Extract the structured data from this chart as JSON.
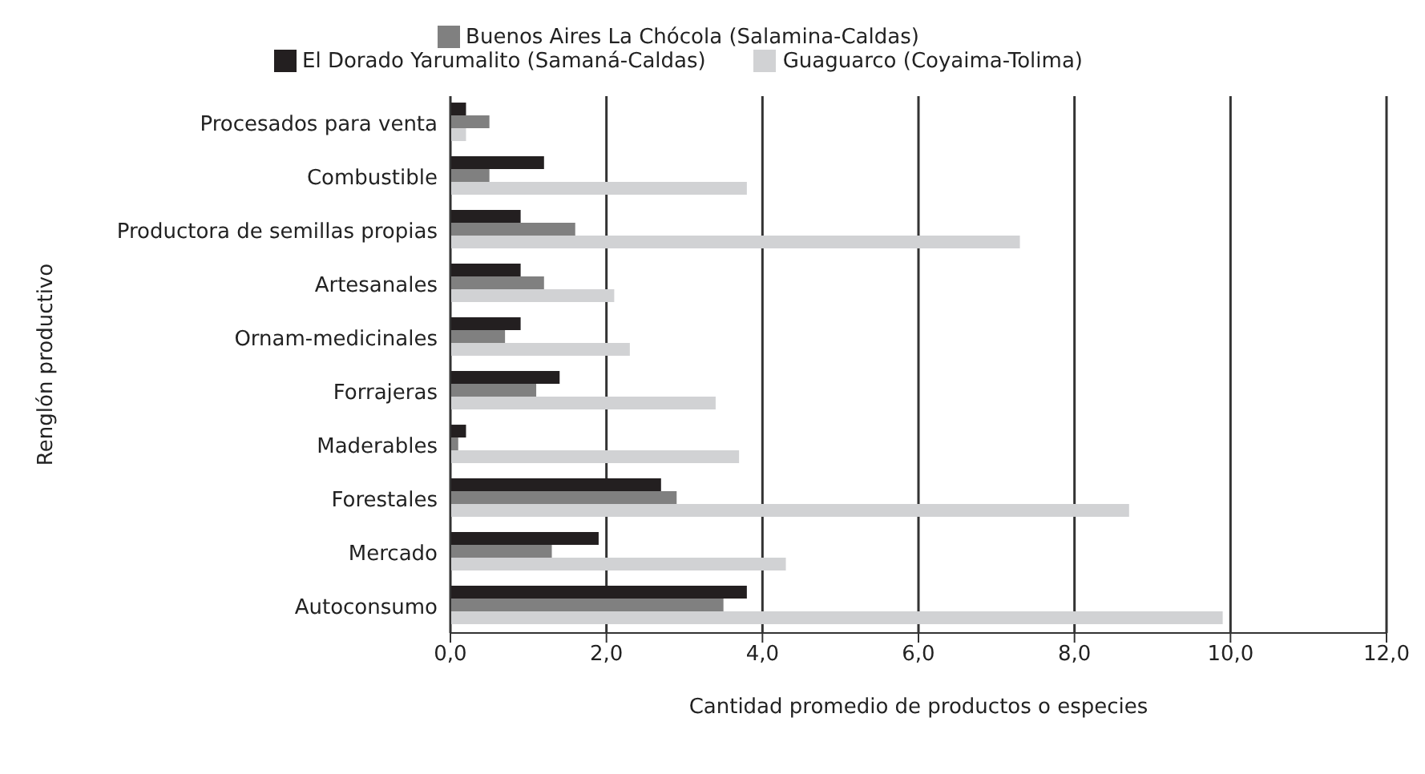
{
  "chart_data": {
    "type": "bar",
    "orientation": "horizontal",
    "xlabel": "Cantidad promedio de productos o especies",
    "ylabel": "Renglón productivo",
    "categories": [
      "Procesados para venta",
      "Combustible",
      "Productora de semillas propias",
      "Artesanales",
      "Ornam-medicinales",
      "Forrajeras",
      "Maderables",
      "Forestales",
      "Mercado",
      "Autoconsumo"
    ],
    "series": [
      {
        "name": "El Dorado Yarumalito (Samaná-Caldas)",
        "color": "#231f20",
        "values": [
          0.2,
          1.2,
          0.9,
          0.9,
          0.9,
          1.4,
          0.2,
          2.7,
          1.9,
          3.8
        ]
      },
      {
        "name": "Buenos Aires La Chócola (Salamina-Caldas)",
        "color": "#808080",
        "values": [
          0.5,
          0.5,
          1.6,
          1.2,
          0.7,
          1.1,
          0.1,
          2.9,
          1.3,
          3.5
        ]
      },
      {
        "name": "Guaguarco (Coyaima-Tolima)",
        "color": "#d1d2d4",
        "values": [
          0.2,
          3.8,
          7.3,
          2.1,
          2.3,
          3.4,
          3.7,
          8.7,
          4.3,
          9.9
        ]
      }
    ],
    "xlim": [
      0,
      12
    ],
    "xticks": [
      {
        "value": 0,
        "label": "0,0"
      },
      {
        "value": 2,
        "label": "2,0"
      },
      {
        "value": 4,
        "label": "4,0"
      },
      {
        "value": 6,
        "label": "6,0"
      },
      {
        "value": 8,
        "label": "8,0"
      },
      {
        "value": 10,
        "label": "10,0"
      },
      {
        "value": 12,
        "label": "12,0"
      }
    ],
    "grid": "x",
    "legend": "top"
  }
}
